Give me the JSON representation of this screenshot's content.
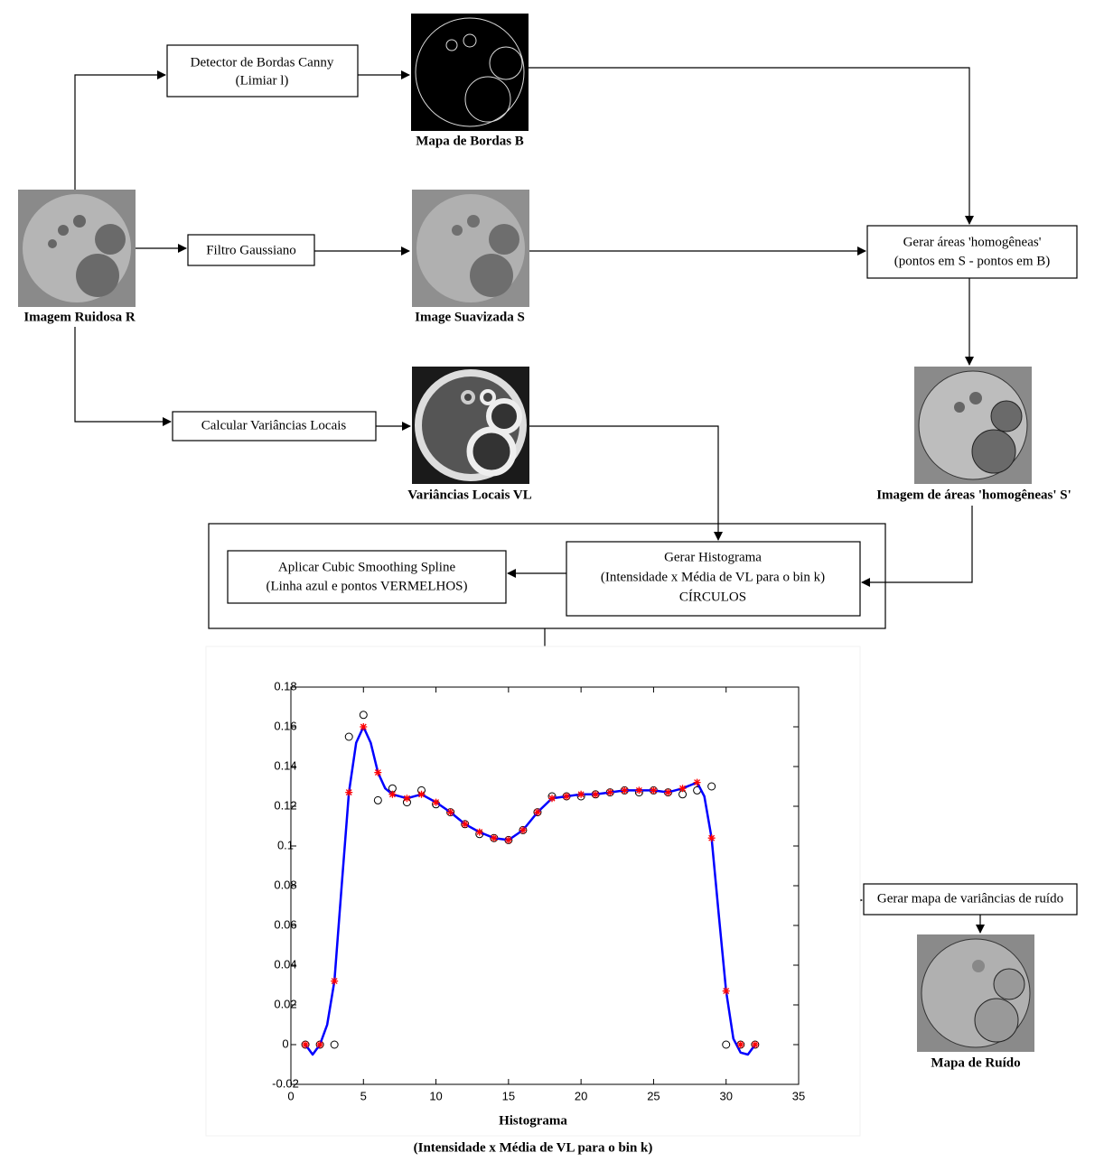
{
  "nodes": [
    {
      "lines": [
        "Detector de Bordas Canny",
        "(Limiar l)"
      ]
    },
    {
      "lines": [
        "Filtro Gaussiano"
      ]
    },
    {
      "lines": [
        "Gerar áreas 'homogêneas'",
        "(pontos em S - pontos em B)"
      ]
    },
    {
      "lines": [
        "Calcular Variâncias Locais"
      ]
    },
    {
      "lines": [
        "Gerar Histograma",
        "(Intensidade x Média de VL para o bin k)",
        "CÍRCULOS"
      ]
    },
    {
      "lines": [
        "Aplicar Cubic Smoothing Spline",
        "(Linha azul e pontos VERMELHOS)"
      ]
    },
    {
      "lines": [
        "Gerar mapa de variâncias de ruído"
      ]
    }
  ],
  "images": [
    {
      "caption": "Mapa de Bordas B"
    },
    {
      "caption": "Imagem Ruidosa R"
    },
    {
      "caption": "Image Suavizada S"
    },
    {
      "caption": "Imagem de áreas 'homogêneas' S'"
    },
    {
      "caption": "Variâncias Locais VL"
    },
    {
      "caption": "Mapa de Ruído"
    }
  ],
  "chart_data": {
    "type": "scatter",
    "title": "Histograma",
    "subtitle": "(Intensidade x Média de VL para o bin k)",
    "xlim": [
      0,
      35
    ],
    "ylim": [
      -0.02,
      0.18
    ],
    "xticks": [
      0,
      5,
      10,
      15,
      20,
      25,
      30,
      35
    ],
    "yticks": [
      -0.02,
      0,
      0.02,
      0.04,
      0.06,
      0.08,
      0.1,
      0.12,
      0.14,
      0.16,
      0.18
    ],
    "series": [
      {
        "marker": "circle",
        "color": "#000000",
        "x": [
          1,
          2,
          3,
          4,
          5,
          6,
          7,
          8,
          9,
          10,
          11,
          12,
          13,
          14,
          15,
          16,
          17,
          18,
          19,
          20,
          21,
          22,
          23,
          24,
          25,
          26,
          27,
          28,
          29,
          30,
          31,
          32
        ],
        "values": [
          0,
          0,
          0,
          0.155,
          0.166,
          0.123,
          0.129,
          0.122,
          0.128,
          0.121,
          0.117,
          0.111,
          0.106,
          0.104,
          0.103,
          0.108,
          0.117,
          0.125,
          0.125,
          0.125,
          0.126,
          0.127,
          0.128,
          0.127,
          0.128,
          0.127,
          0.126,
          0.128,
          0.13,
          0,
          0,
          0
        ]
      },
      {
        "marker": "line",
        "color": "#0000ff",
        "x": [
          1,
          1.5,
          2,
          2.5,
          3,
          3.5,
          4,
          4.5,
          5,
          5.5,
          6,
          6.5,
          7,
          8,
          9,
          10,
          11,
          12,
          13,
          14,
          15,
          16,
          17,
          18,
          19,
          20,
          21,
          22,
          23,
          24,
          25,
          26,
          27,
          28,
          28.5,
          29,
          29.5,
          30,
          30.5,
          31,
          31.5,
          32
        ],
        "values": [
          0,
          -0.005,
          0,
          0.01,
          0.032,
          0.08,
          0.127,
          0.152,
          0.16,
          0.152,
          0.137,
          0.129,
          0.126,
          0.124,
          0.126,
          0.122,
          0.117,
          0.111,
          0.107,
          0.104,
          0.103,
          0.108,
          0.117,
          0.124,
          0.125,
          0.126,
          0.126,
          0.127,
          0.128,
          0.128,
          0.128,
          0.127,
          0.129,
          0.132,
          0.125,
          0.104,
          0.065,
          0.027,
          0.003,
          -0.004,
          -0.005,
          0
        ]
      },
      {
        "marker": "star",
        "color": "#ff0000",
        "x": [
          1,
          2,
          3,
          4,
          5,
          6,
          7,
          8,
          9,
          10,
          11,
          12,
          13,
          14,
          15,
          16,
          17,
          18,
          19,
          20,
          21,
          22,
          23,
          24,
          25,
          26,
          27,
          28,
          29,
          30,
          31,
          32
        ],
        "values": [
          0,
          0,
          0.032,
          0.127,
          0.16,
          0.137,
          0.126,
          0.124,
          0.126,
          0.122,
          0.117,
          0.111,
          0.107,
          0.104,
          0.103,
          0.108,
          0.117,
          0.124,
          0.125,
          0.126,
          0.126,
          0.127,
          0.128,
          0.128,
          0.128,
          0.127,
          0.129,
          0.132,
          0.104,
          0.027,
          0,
          0
        ]
      }
    ]
  }
}
